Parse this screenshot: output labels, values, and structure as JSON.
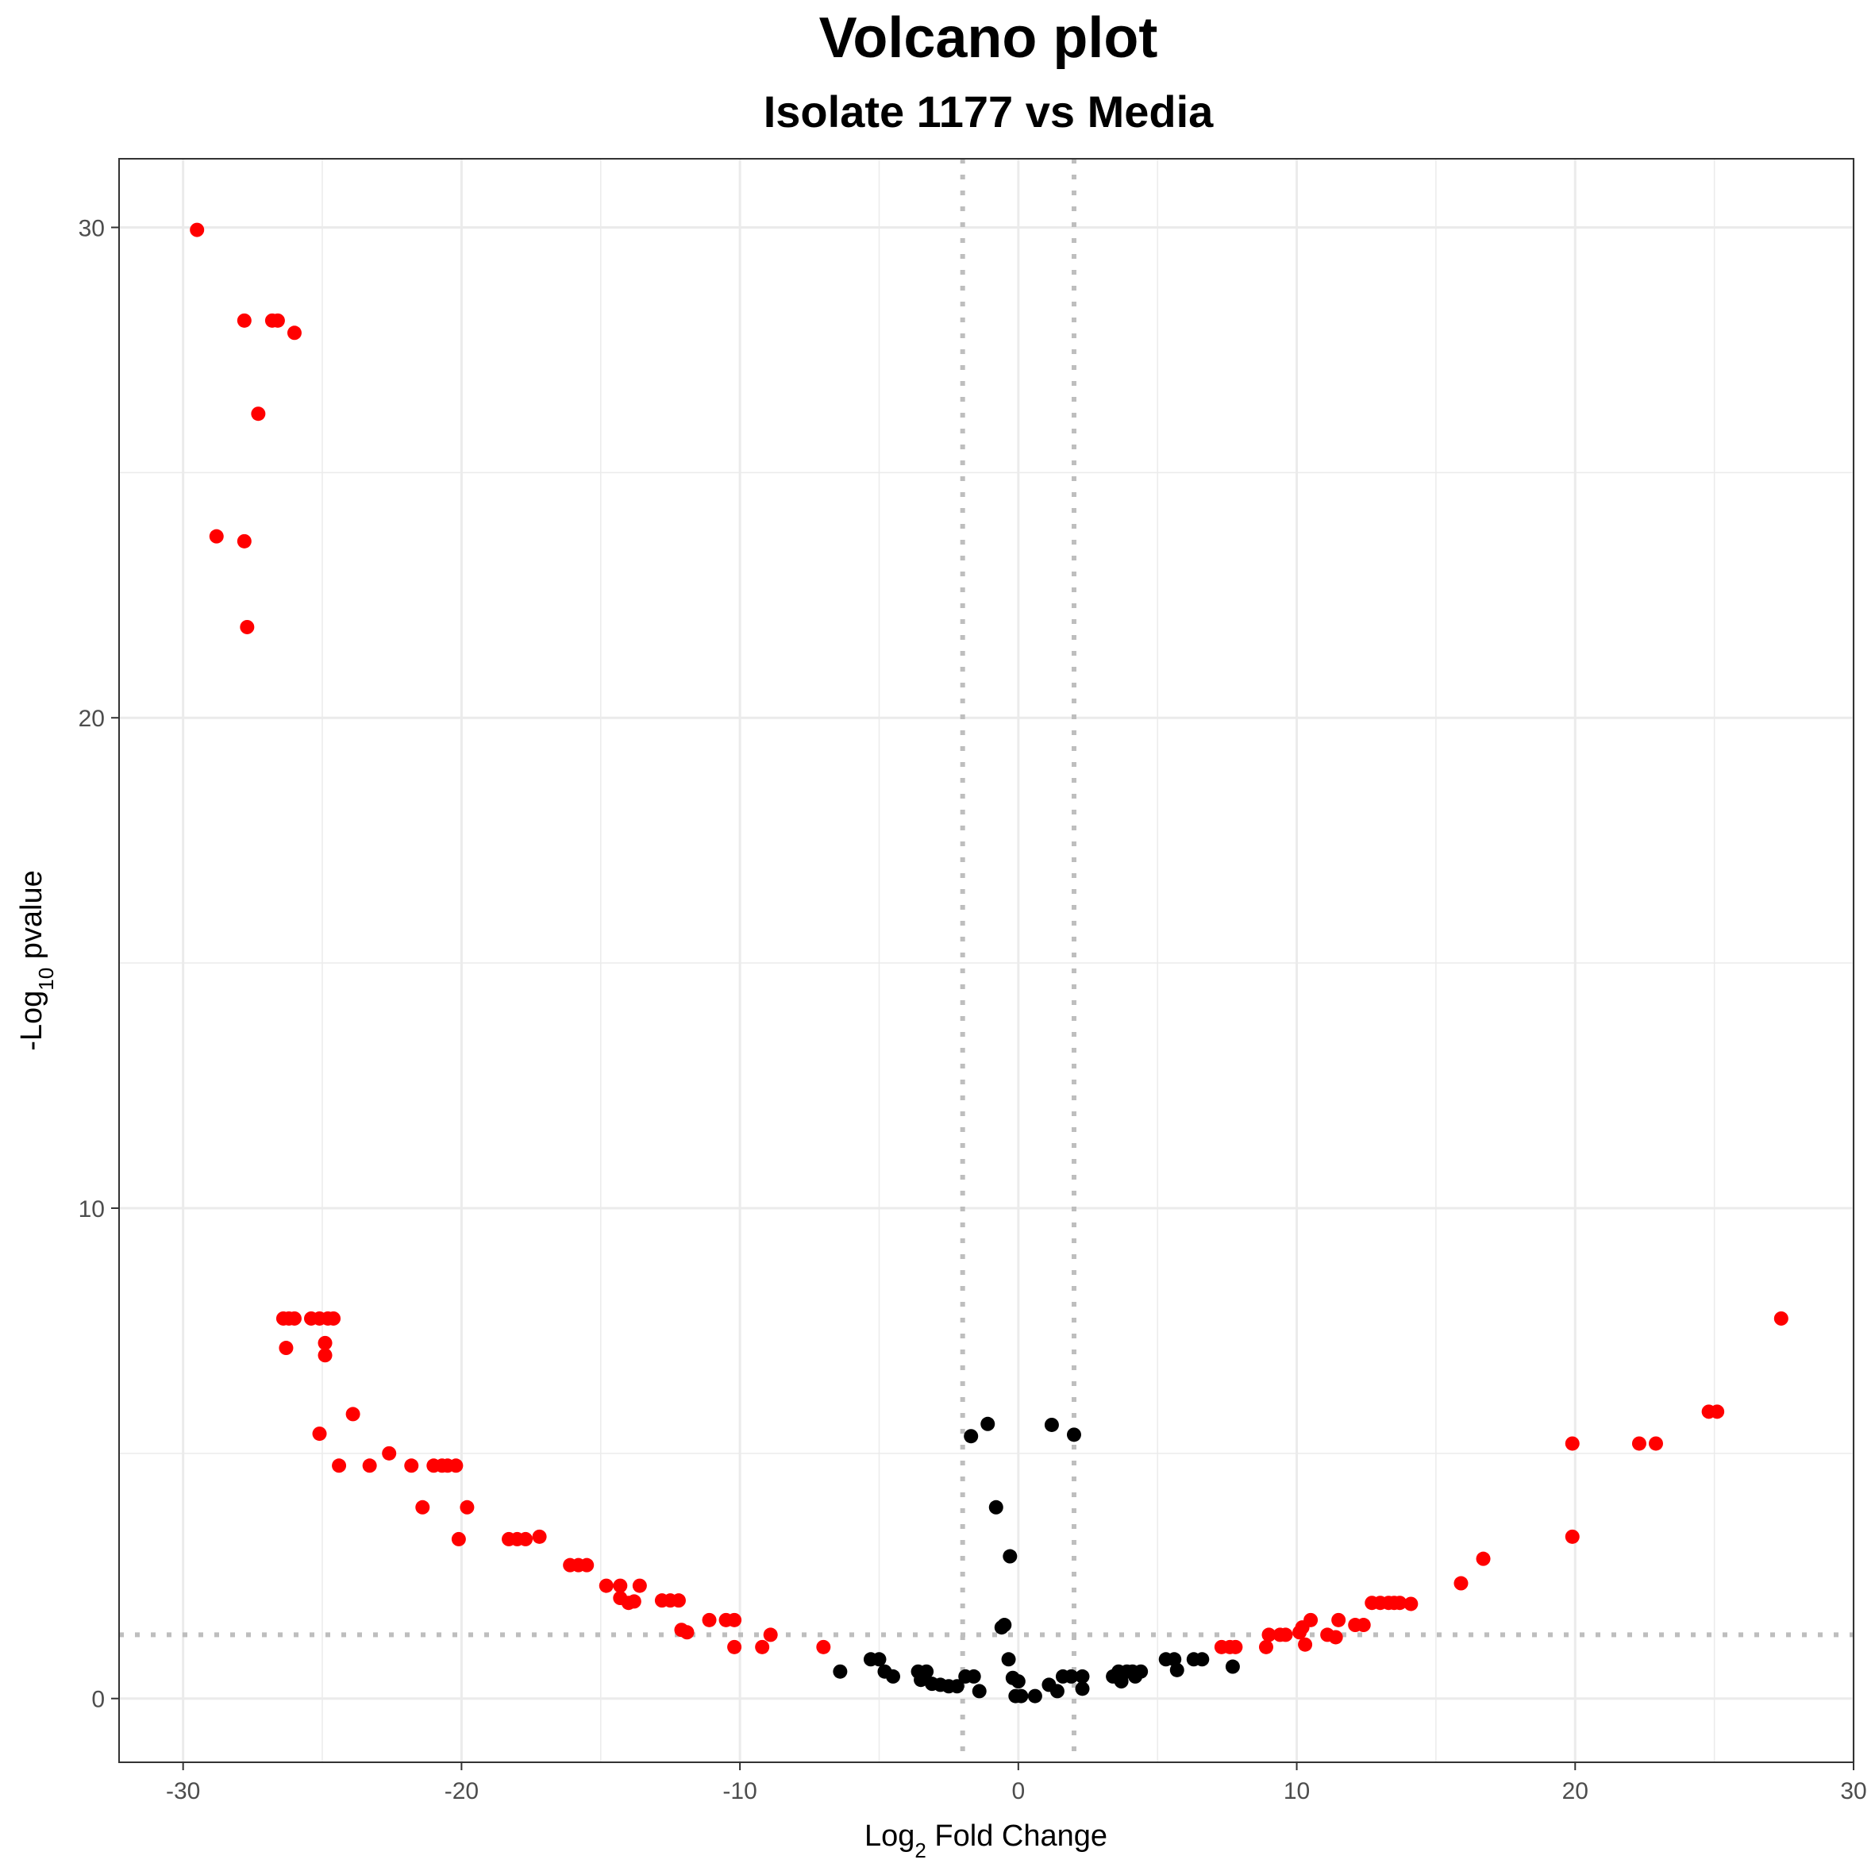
{
  "chart_data": {
    "type": "scatter",
    "title": "Volcano plot",
    "subtitle": "Isolate 1177 vs Media",
    "xlabel": {
      "base": "Log",
      "sub": "2",
      "rest": " Fold Change"
    },
    "ylabel": {
      "base": "-Log",
      "sub": "10",
      "rest": " pvalue"
    },
    "xlim": [
      -32.3,
      30.0
    ],
    "ylim": [
      -1.3,
      31.4
    ],
    "x_ticks": [
      -30,
      -20,
      -10,
      0,
      10,
      20,
      30
    ],
    "x_tick_labels": [
      "-30",
      "-20",
      "-10",
      "0",
      "10",
      "20",
      "30"
    ],
    "y_ticks": [
      0,
      10,
      20,
      30
    ],
    "y_tick_labels": [
      "0",
      "10",
      "20",
      "30"
    ],
    "y_minor_ticks": [
      5,
      15,
      25
    ],
    "x_minor_ticks": [
      -25,
      -15,
      -5,
      5,
      15,
      25
    ],
    "grid": true,
    "legend": "none",
    "thresholds": {
      "vlines": [
        -2,
        2
      ],
      "hline": 1.3
    },
    "colors": {
      "significant": "#ff0000",
      "not_significant": "#000000",
      "threshold": "#bebebe",
      "grid": "#ebebeb"
    },
    "series": [
      {
        "color": "#ff0000",
        "points": [
          [
            -29.5,
            29.95
          ],
          [
            -27.8,
            28.1
          ],
          [
            -26.8,
            28.1
          ],
          [
            -26.6,
            28.1
          ],
          [
            -26.0,
            27.85
          ],
          [
            -27.3,
            26.2
          ],
          [
            -28.8,
            23.7
          ],
          [
            -27.8,
            23.6
          ],
          [
            -27.7,
            21.85
          ],
          [
            -26.4,
            7.75
          ],
          [
            -26.2,
            7.75
          ],
          [
            -26.0,
            7.75
          ],
          [
            -25.4,
            7.75
          ],
          [
            -25.1,
            7.75
          ],
          [
            -24.8,
            7.75
          ],
          [
            -24.6,
            7.75
          ],
          [
            -26.3,
            7.15
          ],
          [
            -24.9,
            7.25
          ],
          [
            -24.9,
            7.0
          ],
          [
            -23.9,
            5.8
          ],
          [
            -25.1,
            5.4
          ],
          [
            -24.4,
            4.75
          ],
          [
            -23.3,
            4.75
          ],
          [
            -22.6,
            5.0
          ],
          [
            -21.8,
            4.75
          ],
          [
            -21.0,
            4.75
          ],
          [
            -20.7,
            4.75
          ],
          [
            -20.5,
            4.75
          ],
          [
            -20.2,
            4.75
          ],
          [
            -21.4,
            3.9
          ],
          [
            -19.8,
            3.9
          ],
          [
            -20.1,
            3.25
          ],
          [
            -18.3,
            3.25
          ],
          [
            -18.0,
            3.25
          ],
          [
            -17.7,
            3.25
          ],
          [
            -17.2,
            3.3
          ],
          [
            -16.1,
            2.72
          ],
          [
            -15.8,
            2.72
          ],
          [
            -15.5,
            2.72
          ],
          [
            -14.8,
            2.3
          ],
          [
            -14.3,
            2.3
          ],
          [
            -14.3,
            2.05
          ],
          [
            -14.0,
            1.95
          ],
          [
            -13.8,
            1.98
          ],
          [
            -13.6,
            2.3
          ],
          [
            -12.8,
            2.0
          ],
          [
            -12.5,
            2.0
          ],
          [
            -12.2,
            2.0
          ],
          [
            -12.1,
            1.4
          ],
          [
            -11.9,
            1.35
          ],
          [
            -11.1,
            1.6
          ],
          [
            -10.5,
            1.6
          ],
          [
            -10.2,
            1.6
          ],
          [
            -10.2,
            1.05
          ],
          [
            -9.2,
            1.05
          ],
          [
            -8.9,
            1.3
          ],
          [
            -7.0,
            1.05
          ],
          [
            7.3,
            1.05
          ],
          [
            7.6,
            1.05
          ],
          [
            7.8,
            1.05
          ],
          [
            8.9,
            1.05
          ],
          [
            9.0,
            1.3
          ],
          [
            9.4,
            1.3
          ],
          [
            9.6,
            1.3
          ],
          [
            10.1,
            1.35
          ],
          [
            10.2,
            1.45
          ],
          [
            10.3,
            1.1
          ],
          [
            10.5,
            1.6
          ],
          [
            11.1,
            1.3
          ],
          [
            11.4,
            1.25
          ],
          [
            11.5,
            1.6
          ],
          [
            12.1,
            1.5
          ],
          [
            12.4,
            1.5
          ],
          [
            12.7,
            1.95
          ],
          [
            13.0,
            1.95
          ],
          [
            13.3,
            1.95
          ],
          [
            13.5,
            1.95
          ],
          [
            13.7,
            1.95
          ],
          [
            14.1,
            1.93
          ],
          [
            15.9,
            2.35
          ],
          [
            16.7,
            2.85
          ],
          [
            19.9,
            3.3
          ],
          [
            19.9,
            5.2
          ],
          [
            22.3,
            5.2
          ],
          [
            22.9,
            5.2
          ],
          [
            24.8,
            5.85
          ],
          [
            25.1,
            5.85
          ],
          [
            27.4,
            7.75
          ]
        ]
      },
      {
        "color": "#000000",
        "points": [
          [
            -6.4,
            0.55
          ],
          [
            -5.3,
            0.8
          ],
          [
            -5.0,
            0.8
          ],
          [
            -4.8,
            0.55
          ],
          [
            -4.5,
            0.45
          ],
          [
            -3.6,
            0.55
          ],
          [
            -3.5,
            0.38
          ],
          [
            -3.3,
            0.55
          ],
          [
            -3.1,
            0.3
          ],
          [
            -2.8,
            0.28
          ],
          [
            -2.5,
            0.25
          ],
          [
            -2.2,
            0.25
          ],
          [
            -1.9,
            0.45
          ],
          [
            -1.6,
            0.45
          ],
          [
            -1.4,
            0.15
          ],
          [
            -1.7,
            5.35
          ],
          [
            -1.1,
            5.6
          ],
          [
            -0.8,
            3.9
          ],
          [
            -0.6,
            1.45
          ],
          [
            -0.5,
            1.5
          ],
          [
            -0.3,
            2.9
          ],
          [
            -0.35,
            0.8
          ],
          [
            -0.2,
            0.42
          ],
          [
            -0.1,
            0.05
          ],
          [
            0.0,
            0.35
          ],
          [
            0.1,
            0.05
          ],
          [
            0.6,
            0.05
          ],
          [
            1.2,
            5.58
          ],
          [
            1.1,
            0.28
          ],
          [
            1.4,
            0.15
          ],
          [
            1.6,
            0.45
          ],
          [
            1.9,
            0.45
          ],
          [
            2.0,
            5.38
          ],
          [
            2.3,
            0.45
          ],
          [
            2.3,
            0.2
          ],
          [
            3.4,
            0.45
          ],
          [
            3.6,
            0.55
          ],
          [
            3.7,
            0.35
          ],
          [
            3.9,
            0.55
          ],
          [
            4.1,
            0.55
          ],
          [
            4.2,
            0.45
          ],
          [
            4.4,
            0.55
          ],
          [
            5.3,
            0.8
          ],
          [
            5.6,
            0.8
          ],
          [
            5.7,
            0.58
          ],
          [
            6.3,
            0.8
          ],
          [
            6.6,
            0.8
          ],
          [
            7.7,
            0.65
          ]
        ]
      }
    ]
  }
}
